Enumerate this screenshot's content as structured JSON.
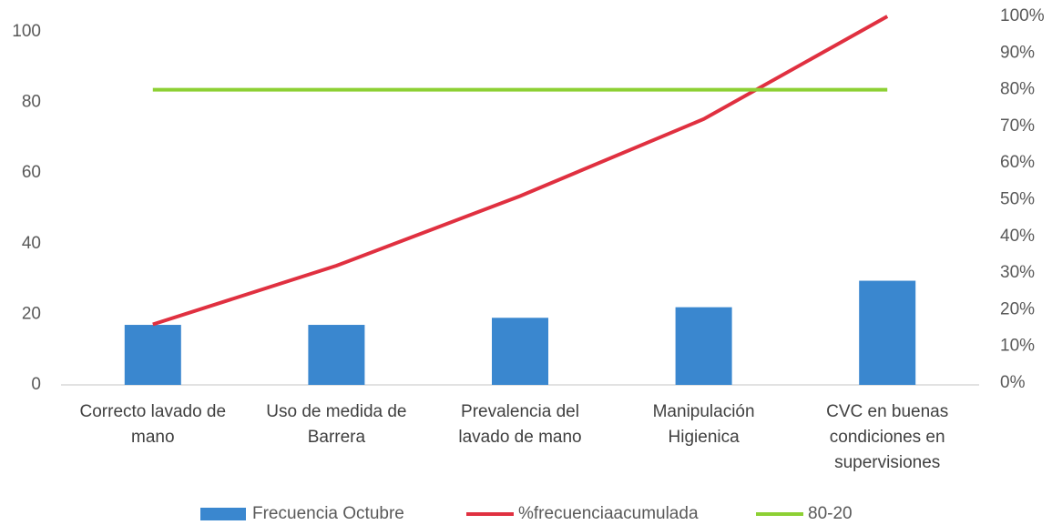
{
  "chart_data": {
    "type": "bar",
    "categories": [
      "Correcto lavado de mano",
      "Uso de medida de Barrera",
      "Prevalencia del lavado de mano",
      "Manipulación Higienica",
      "CVC en buenas condiciones en supervisiones"
    ],
    "series": [
      {
        "name": "Frecuencia Octubre",
        "type": "bar",
        "color": "#3a87cf",
        "values": [
          17,
          17,
          19,
          22,
          29.5
        ]
      },
      {
        "name": "%frecuenciaacumulada",
        "type": "line",
        "axis": "y2",
        "color": "#e03040",
        "values": [
          16,
          32,
          51,
          72,
          100
        ]
      },
      {
        "name": "80-20",
        "type": "line",
        "axis": "y2",
        "color": "#8dd034",
        "values": [
          80,
          80,
          80,
          80,
          80
        ]
      }
    ],
    "ylim": [
      0,
      100
    ],
    "yticks": [
      0,
      20,
      40,
      60,
      80,
      100
    ],
    "y2lim": [
      0,
      100
    ],
    "y2ticks": [
      {
        "value": 0,
        "label": "0%"
      },
      {
        "value": 10,
        "label": "10%"
      },
      {
        "value": 20,
        "label": "20%"
      },
      {
        "value": 30,
        "label": "30%"
      },
      {
        "value": 40,
        "label": "40%"
      },
      {
        "value": 50,
        "label": "50%"
      },
      {
        "value": 60,
        "label": "60%"
      },
      {
        "value": 70,
        "label": "70%"
      },
      {
        "value": 80,
        "label": "80%"
      },
      {
        "value": 90,
        "label": "90%"
      },
      {
        "value": 100,
        "label": "100%"
      }
    ],
    "legend": "bottom"
  }
}
